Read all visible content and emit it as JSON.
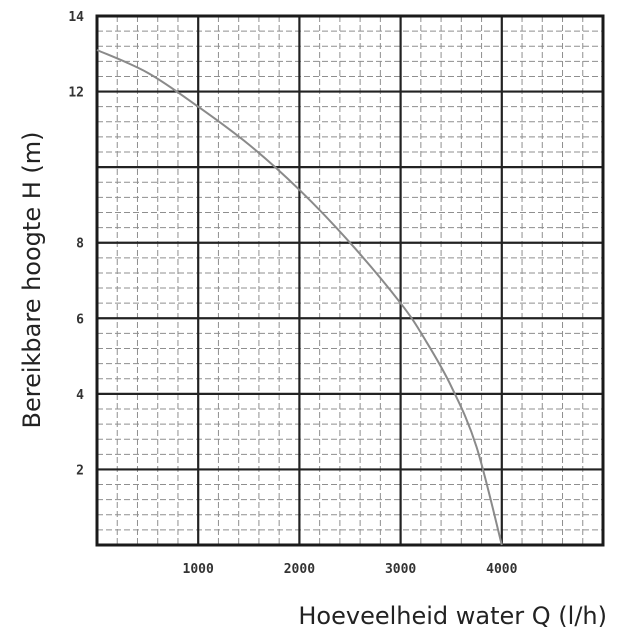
{
  "chart_data": {
    "type": "line",
    "title": "",
    "xlabel": "Hoeveelheid water Q (l/h)",
    "ylabel": "Bereikbare hoogte H (m)",
    "xlim": [
      0,
      5000
    ],
    "ylim": [
      0,
      14
    ],
    "x_ticks": [
      {
        "value": 1000,
        "label": "1000"
      },
      {
        "value": 2000,
        "label": "2000"
      },
      {
        "value": 3000,
        "label": "3000"
      },
      {
        "value": 4000,
        "label": "4000"
      }
    ],
    "y_ticks": [
      {
        "value": 2,
        "label": "2"
      },
      {
        "value": 4,
        "label": "4"
      },
      {
        "value": 6,
        "label": "6"
      },
      {
        "value": 8,
        "label": "8"
      },
      {
        "value": 12,
        "label": "12"
      },
      {
        "value": 14,
        "label": "14"
      }
    ],
    "grid": true,
    "series": [
      {
        "x": [
          0,
          500,
          1000,
          1500,
          2000,
          2500,
          3000,
          3250,
          3500,
          3750,
          4000
        ],
        "y": [
          13.1,
          12.5,
          11.6,
          10.6,
          9.4,
          8.0,
          6.4,
          5.4,
          4.2,
          2.6,
          0.0
        ]
      }
    ],
    "colors": {
      "line": "#8a8a8a",
      "major_grid": "#222222",
      "minor_grid": "#8f8f8f"
    }
  }
}
